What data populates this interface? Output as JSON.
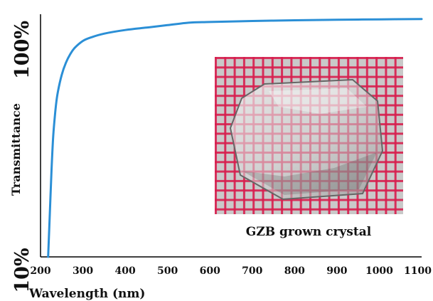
{
  "chart_data": {
    "type": "line",
    "xlabel": "Wavelength (nm)",
    "ylabel": "Transmittance",
    "xlim": [
      200,
      1100
    ],
    "ylim_labels": [
      "10%",
      "100%"
    ],
    "x_ticks": [
      200,
      300,
      400,
      500,
      600,
      700,
      800,
      900,
      1000,
      1100
    ],
    "grid": false,
    "series": [
      {
        "color": "#2b8fd6",
        "x": [
          218,
          222,
          226,
          230,
          235,
          240,
          250,
          260,
          270,
          280,
          300,
          320,
          350,
          400,
          450,
          500,
          550,
          600,
          700,
          800,
          900,
          1000,
          1100
        ],
        "y": [
          0.0,
          0.18,
          0.36,
          0.5,
          0.6,
          0.67,
          0.75,
          0.8,
          0.835,
          0.86,
          0.89,
          0.905,
          0.92,
          0.935,
          0.945,
          0.955,
          0.965,
          0.968,
          0.972,
          0.975,
          0.977,
          0.979,
          0.98
        ]
      }
    ],
    "inset": {
      "caption": "GZB grown crystal",
      "colors": {
        "grid": "#d81e4e",
        "background": "#bdbdbd"
      }
    }
  }
}
